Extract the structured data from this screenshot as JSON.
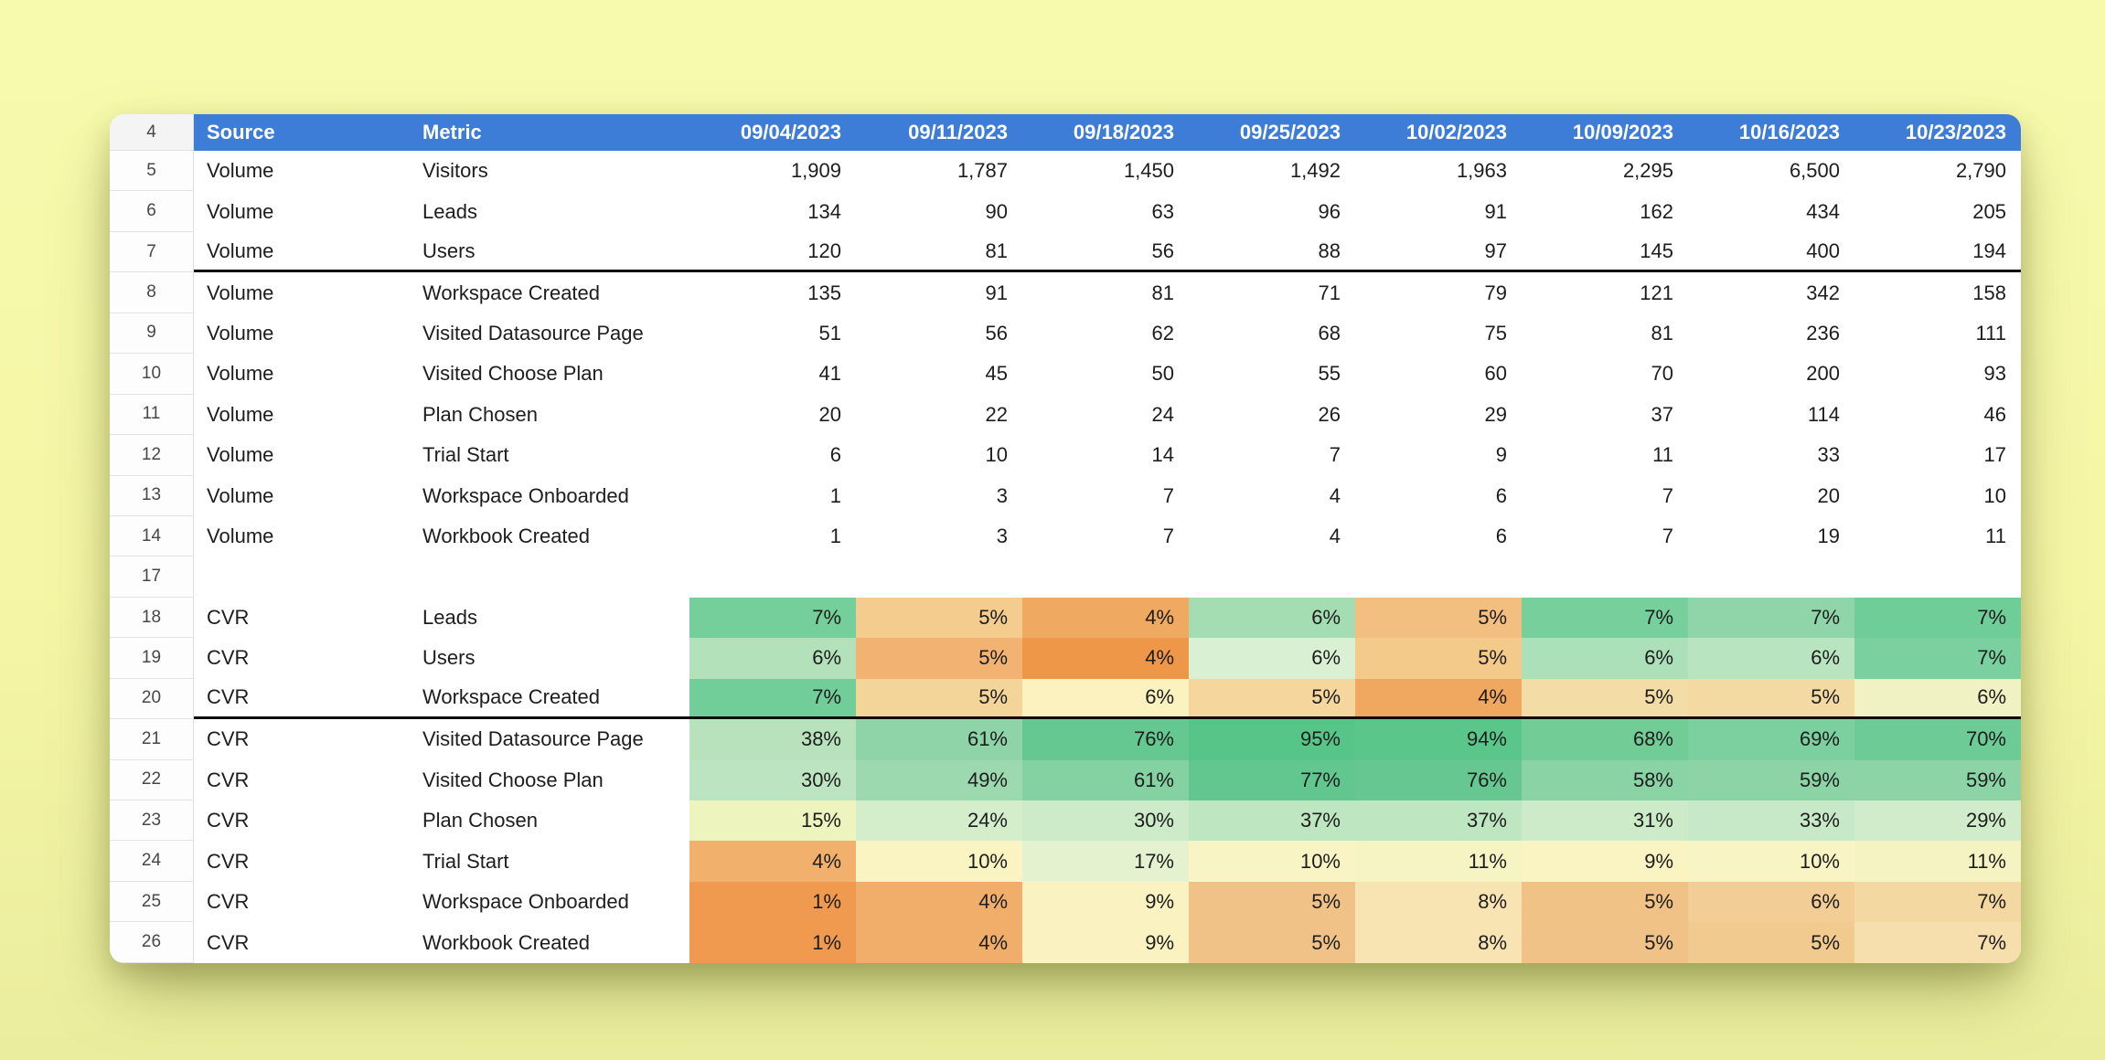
{
  "app": {
    "background_color": "#f5f7a6",
    "header_bg_color": "#3d7dd8",
    "header_text_color": "#ffffff"
  },
  "sheet": {
    "header": {
      "row_num": "4",
      "columns": [
        "Source",
        "Metric",
        "09/04/2023",
        "09/11/2023",
        "09/18/2023",
        "09/25/2023",
        "10/02/2023",
        "10/09/2023",
        "10/16/2023",
        "10/23/2023"
      ]
    },
    "rows": [
      {
        "num": "5",
        "source": "Volume",
        "metric": "Visitors",
        "values": [
          "1,909",
          "1,787",
          "1,450",
          "1,492",
          "1,963",
          "2,295",
          "6,500",
          "2,790"
        ],
        "colors": null,
        "thick_bottom": false
      },
      {
        "num": "6",
        "source": "Volume",
        "metric": "Leads",
        "values": [
          "134",
          "90",
          "63",
          "96",
          "91",
          "162",
          "434",
          "205"
        ],
        "colors": null,
        "thick_bottom": false
      },
      {
        "num": "7",
        "source": "Volume",
        "metric": "Users",
        "values": [
          "120",
          "81",
          "56",
          "88",
          "97",
          "145",
          "400",
          "194"
        ],
        "colors": null,
        "thick_bottom": true
      },
      {
        "num": "8",
        "source": "Volume",
        "metric": "Workspace Created",
        "values": [
          "135",
          "91",
          "81",
          "71",
          "79",
          "121",
          "342",
          "158"
        ],
        "colors": null,
        "thick_bottom": false
      },
      {
        "num": "9",
        "source": "Volume",
        "metric": "Visited Datasource Page",
        "values": [
          "51",
          "56",
          "62",
          "68",
          "75",
          "81",
          "236",
          "111"
        ],
        "colors": null,
        "thick_bottom": false
      },
      {
        "num": "10",
        "source": "Volume",
        "metric": "Visited Choose Plan",
        "values": [
          "41",
          "45",
          "50",
          "55",
          "60",
          "70",
          "200",
          "93"
        ],
        "colors": null,
        "thick_bottom": false
      },
      {
        "num": "11",
        "source": "Volume",
        "metric": "Plan Chosen",
        "values": [
          "20",
          "22",
          "24",
          "26",
          "29",
          "37",
          "114",
          "46"
        ],
        "colors": null,
        "thick_bottom": false
      },
      {
        "num": "12",
        "source": "Volume",
        "metric": "Trial Start",
        "values": [
          "6",
          "10",
          "14",
          "7",
          "9",
          "11",
          "33",
          "17"
        ],
        "colors": null,
        "thick_bottom": false
      },
      {
        "num": "13",
        "source": "Volume",
        "metric": "Workspace Onboarded",
        "values": [
          "1",
          "3",
          "7",
          "4",
          "6",
          "7",
          "20",
          "10"
        ],
        "colors": null,
        "thick_bottom": false
      },
      {
        "num": "14",
        "source": "Volume",
        "metric": "Workbook Created",
        "values": [
          "1",
          "3",
          "7",
          "4",
          "6",
          "7",
          "19",
          "11"
        ],
        "colors": null,
        "thick_bottom": false
      },
      {
        "num": "17",
        "source": "",
        "metric": "",
        "values": [
          "",
          "",
          "",
          "",
          "",
          "",
          "",
          ""
        ],
        "colors": null,
        "thick_bottom": false
      },
      {
        "num": "18",
        "source": "CVR",
        "metric": "Leads",
        "values": [
          "7%",
          "5%",
          "4%",
          "6%",
          "5%",
          "7%",
          "7%",
          "7%"
        ],
        "colors": [
          "#74cf9a",
          "#f4cd8e",
          "#f0a961",
          "#a5ddb3",
          "#f2bf80",
          "#77d09c",
          "#8fd5a9",
          "#6fcd98"
        ],
        "thick_bottom": false
      },
      {
        "num": "19",
        "source": "CVR",
        "metric": "Users",
        "values": [
          "6%",
          "5%",
          "4%",
          "6%",
          "5%",
          "6%",
          "6%",
          "7%"
        ],
        "colors": [
          "#b3e1b9",
          "#f2b272",
          "#ee9748",
          "#d9f0d2",
          "#f4ca8b",
          "#abe0b8",
          "#b8e4c0",
          "#7ad19f"
        ],
        "thick_bottom": false
      },
      {
        "num": "20",
        "source": "CVR",
        "metric": "Workspace Created",
        "values": [
          "7%",
          "5%",
          "6%",
          "5%",
          "4%",
          "5%",
          "5%",
          "6%"
        ],
        "colors": [
          "#72ce99",
          "#f4d599",
          "#fbf2c0",
          "#f5d69c",
          "#f0a75f",
          "#f4dca6",
          "#f3d9a2",
          "#f0f2c4"
        ],
        "thick_bottom": true
      },
      {
        "num": "21",
        "source": "CVR",
        "metric": "Visited Datasource Page",
        "values": [
          "38%",
          "61%",
          "76%",
          "95%",
          "94%",
          "68%",
          "69%",
          "70%"
        ],
        "colors": [
          "#b7e2bc",
          "#8fd4a8",
          "#65c891",
          "#58c588",
          "#5bc68a",
          "#71cc96",
          "#7ccf9e",
          "#6dcb95"
        ],
        "thick_bottom": false
      },
      {
        "num": "22",
        "source": "CVR",
        "metric": "Visited Choose Plan",
        "values": [
          "30%",
          "49%",
          "61%",
          "77%",
          "76%",
          "58%",
          "59%",
          "59%"
        ],
        "colors": [
          "#bde4c0",
          "#9cd9ae",
          "#84d1a2",
          "#62c78f",
          "#66c890",
          "#89d3a4",
          "#8cd4a6",
          "#8cd4a6"
        ],
        "thick_bottom": false
      },
      {
        "num": "23",
        "source": "CVR",
        "metric": "Plan Chosen",
        "values": [
          "15%",
          "24%",
          "30%",
          "37%",
          "37%",
          "31%",
          "33%",
          "29%"
        ],
        "colors": [
          "#eef4be",
          "#d4eecc",
          "#cdebc9",
          "#bee6c1",
          "#bee6c1",
          "#ceebc9",
          "#c8e9c7",
          "#d1ecca"
        ],
        "thick_bottom": false
      },
      {
        "num": "24",
        "source": "CVR",
        "metric": "Trial Start",
        "values": [
          "4%",
          "10%",
          "17%",
          "10%",
          "11%",
          "9%",
          "10%",
          "11%"
        ],
        "colors": [
          "#f2b06d",
          "#f9f4c2",
          "#e4f2d0",
          "#f8f4c3",
          "#f7f4c4",
          "#f9f4c2",
          "#f8f4c3",
          "#f6f3c3"
        ],
        "thick_bottom": false
      },
      {
        "num": "25",
        "source": "CVR",
        "metric": "Workspace Onboarded",
        "values": [
          "1%",
          "4%",
          "9%",
          "5%",
          "8%",
          "5%",
          "6%",
          "7%"
        ],
        "colors": [
          "#ef9a4e",
          "#f1ae6b",
          "#faf2c0",
          "#f0c287",
          "#f8e3b3",
          "#f0c285",
          "#f2cd95",
          "#f4d8a2"
        ],
        "thick_bottom": false
      },
      {
        "num": "26",
        "source": "CVR",
        "metric": "Workbook Created",
        "values": [
          "1%",
          "4%",
          "9%",
          "5%",
          "8%",
          "5%",
          "5%",
          "7%"
        ],
        "colors": [
          "#ef9a4e",
          "#f1ae6b",
          "#faf2c0",
          "#f0c287",
          "#f8e3b3",
          "#f0c287",
          "#f1ca90",
          "#f6dfad"
        ],
        "thick_bottom": false
      }
    ]
  }
}
